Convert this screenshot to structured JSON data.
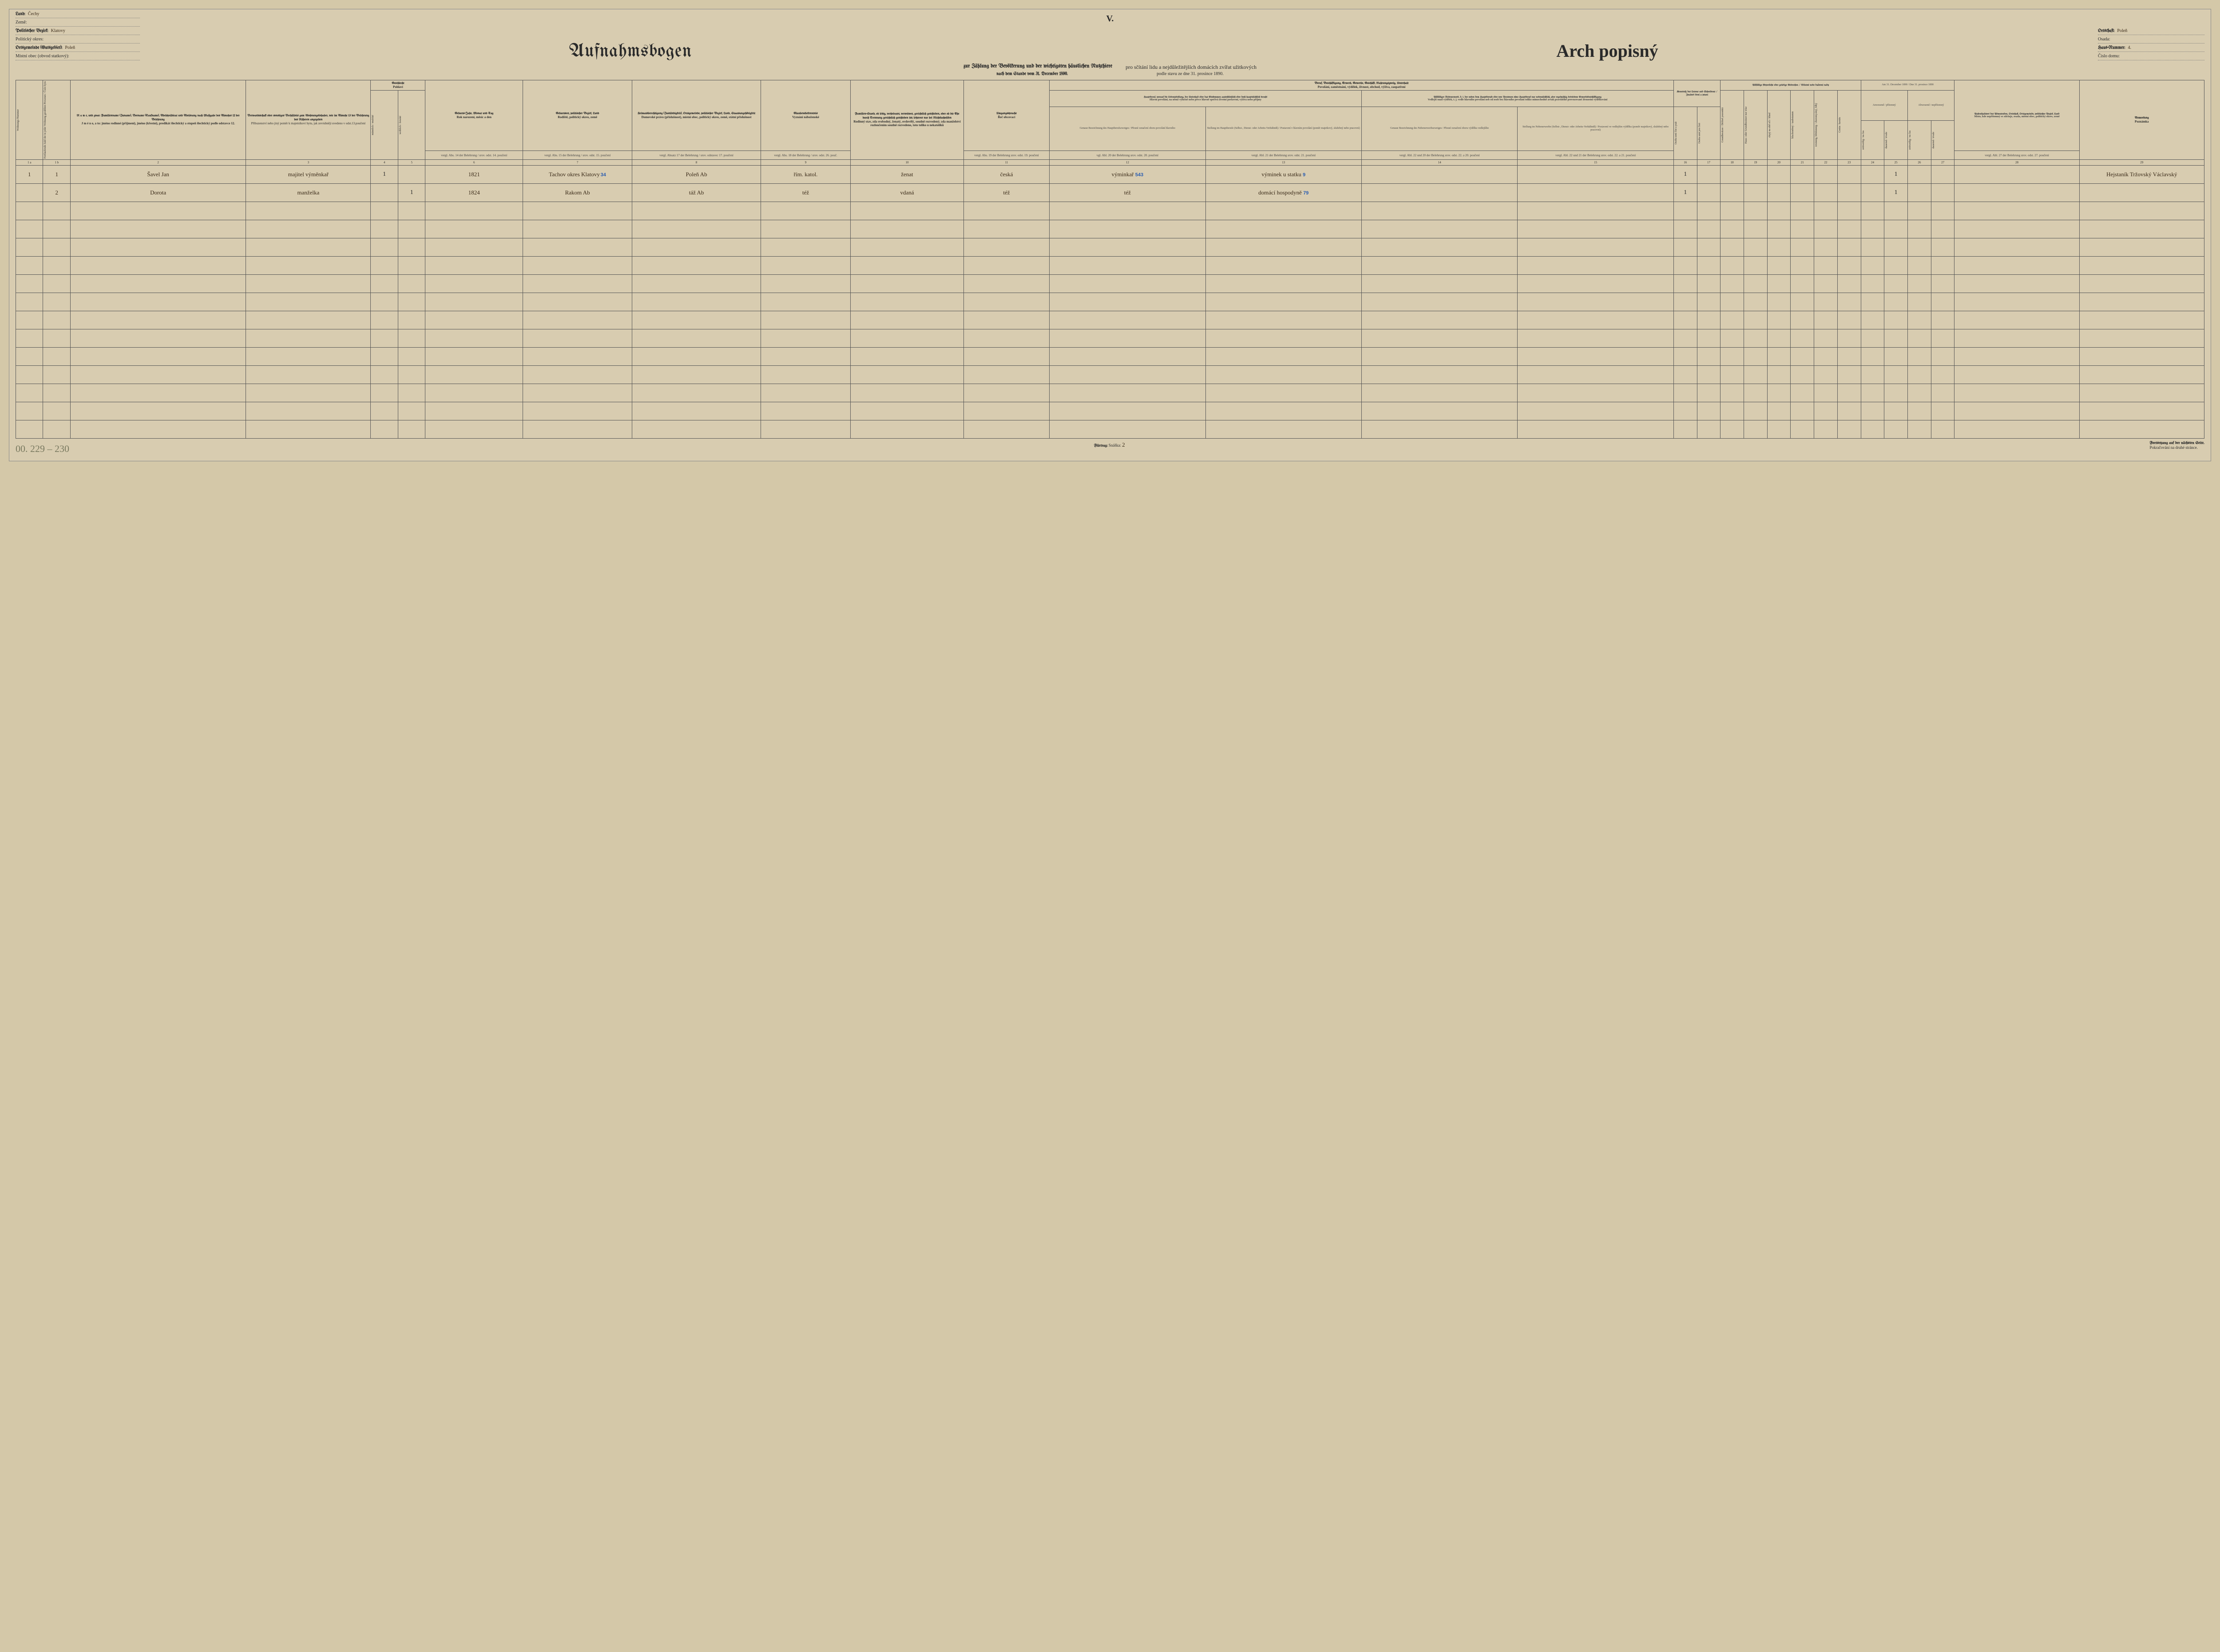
{
  "page_roman": "V.",
  "header_left": {
    "land_de": "Land:",
    "land_cz": "Země:",
    "land_val": "Čechy",
    "bezirk_de": "Politischer Bezirk:",
    "bezirk_cz": "Politický okres:",
    "bezirk_val": "Klatovy",
    "gemeinde_de": "Ortsgemeinde (Gutsgebiet):",
    "gemeinde_cz": "Místní obec (obvod statkový):",
    "gemeinde_val": "Poleň"
  },
  "header_right": {
    "ort_de": "Ortschaft:",
    "ort_cz": "Osada:",
    "ort_val": "Poleň",
    "haus_de": "Haus-Nummer:",
    "haus_cz": "Číslo domu:",
    "haus_val": "4."
  },
  "title_de": "Aufnahmsbogen",
  "title_cz": "Arch popisný",
  "subtitle_de": "zur Zählung der Bevölkerung und der wichtigsten häuslichen Nutzthiere",
  "subtitle_cz": "pro sčítání lidu a nejdůležitějších domácích zvířat užitkových",
  "date_de": "nach dem Stande vom 31. December 1890.",
  "date_cz": "podle stavu ze dne 31. prosince 1890.",
  "columns": {
    "c1a": "Wohnungs-Nummer",
    "c1b": "Fortlaufende Zahl der in jeder Wohnung gezählten Personen / Číslo bytu",
    "c2_de": "N a m e, und zwar: Familienname (Zuname), Vorname (Taufname), Adelsprädicat und Adelsrang nach Maßgabe des Absatzes 12 der Belehrung",
    "c2_cz": "J m é n o, a to: jméno rodinné (příjmení), jméno (křestní), predikát šlechtický a stupeň šlechtický podle odstavce 12.",
    "c3_de": "Verwandtschaft oder sonstiges Verhältnis zum Wohnungsinhaber, wie im Absatze 13 der Belehrung des Näheren angegeben",
    "c3_cz": "Příbuzenství nebo jiný poměr k majetníkovi bytu, jak zevrubněji uvedeno v odst.13.poučení",
    "c45_de": "Geschlecht",
    "c45_cz": "Pohlaví",
    "c4": "männlich / mužské",
    "c5": "weiblich / ženské",
    "c6_de": "Geburts-Jahr, Monat und Tag",
    "c6_cz": "Rok narození, měsíc a den",
    "c6_ref": "vergl. Abs. 14 der Belehrung / srov. odst. 14. poučení",
    "c7_de": "Geburtsort, politischer Bezirk, Land",
    "c7_cz": "Rodiště, politický okres, země",
    "c7_ref": "vergl. Abs. 15 der Belehrung / srov. odst. 15. poučení",
    "c8_de": "Heimatsberechtigung (Zuständigkeit), Ortsgemeinde, politischer Bezirk, Land, Staatsangehörigkeit",
    "c8_cz": "Domovské právo (příslušnost), místní obec, politický okres, země, státní příslušnost",
    "c8_ref": "vergl. Absatz 17 der Belehrung / srov. odstavec 17. poučení",
    "c9_de": "Glaubensbekenntnis",
    "c9_cz": "Vyznání náboženské",
    "c9_ref": "vergl. Abs. 18 der Belehrung / srov. odst. 26. pouč.",
    "c10_de": "Familien-Stand, ob ledig, verheiratet, verwitwet, gerichtlich geschieden, oder ob die Ehe durch Trennung gerichtlich geschieden ist; letzteres nur bei Nichtkatholiken",
    "c10_cz": "Rodinný stav, zda svobodný, ženatý, ovdovělý, soudně rozvedený; zda manželství rozloučením soudně rozvedeno, toto toliko u nekatolíků",
    "c11_de": "Umgangssprache",
    "c11_cz": "Řeč obcovací",
    "c11_ref": "vergl. Abs. 19 der Belehrung srov. odst. 19. poučení",
    "c12_15_de": "Beruf, Beschäftigung, Erwerb, Gewerbe, Geschäft, Nahrungszweig, Unterhalt",
    "c12_15_cz": "Povolání, zaměstnání, výdělek, živnost, obchod, výživa, zaopatření",
    "c12_de": "Hauptberuf, worauf die Lebensstellung, der Unterhalt oder das Einkommen ausschließlich oder doch hauptsächlich beruht",
    "c12_cz": "Hlavní povolání, na němž výlučně nebo přece hlavně spočívá životní postavení, výživa nebo příjmy",
    "c12_sub_de": "Genaue Bezeichnung des Hauptberufszweiges / Přesné označení oboru povolání hlavního",
    "c13_sub_de": "Stellung im Hauptberufe (Selbst-, Dienst- oder Arbeits-Verhältniß) / Postavení v hlavním povolání (poměr majetkový, služebný nebo pracovní)",
    "c14_de": "Allfälliger Nebenerwerb, d. i. der neben dem Hauptberufe oder von Personen ohne Hauptberuf nur nebensächlich, aber regelmäßig betriebene Erwerbsbeschäftigung",
    "c14_cz": "Vedlejší snad výdělek, t. j. vedle hlavního povolání neb od osob bez hlavního povolání toliko mimochodně avšak pravidelně provozované živnostní výdělkování",
    "c14_sub": "Genaue Bezeichnung des Nebenerwerbszweiges / Přesné označení oboru výdělku vedlejšího",
    "c15_sub": "Stellung im Nebenerwerbe (Selbst-, Dienst- oder Arbeits-Verhältniß) / Postavení ve vedlejším výdělku (poměr majetkový, služebný nebo pracovní)",
    "c12_ref": "vgl. Abl. 20 der Belehrung srov. odst. 20. poučení",
    "c13_ref": "vergl. Abl. 21 der Belehrung srov. odst. 21. poučení",
    "c14_ref": "vergl. Abl. 22 und 20 der Belehrung srov. odst. 22. a 20. poučení",
    "c15_ref": "vergl. Abl. 22 und 21 der Belehrung srov. odst. 22. a 21. poučení",
    "c1617_de": "Kenntniß des Lesens und Schreibens / Znalost čtení a psaní",
    "c16": "Osoba umí číst a psát",
    "c17": "Osoba umí jen čísti",
    "c1823_de": "Allfällige körperliche oder geistige Gebrechen / Tělesné nebo duševní vady",
    "c18": "Grundbesitzer / Držitel pozemků",
    "c19": "Haus- oder Grundbesitzer nur tríse",
    "c20": "slepý na obě oči / blind",
    "c21": "hluchoněmý / taubstumm",
    "c22": "irrsinnig, blödsinnig / choromyslný, blbý",
    "c23": "Cretin / kretén",
    "c2427_de": "Am 31. December 1890 / Dne 31. prosince 1890",
    "c2425": "Anwesend / přítomný",
    "c2627": "Abwesend / nepřítomný",
    "c24": "zeitweilig / na čas",
    "c25": "dauernd / trvale",
    "c26": "zeitweilig / na čas",
    "c27": "dauernd / trvale",
    "c28_de": "Aufenthaltsort des Abwesenden, Ortschaft, Ortsgemeinde, politischer Bezirk, Land",
    "c28_cz": "Místo, kde nepřítomný se zdržuje, osada, místní obec, politický okres, země",
    "c28_ref": "vergl. Abl. 27 der Belehrung srov. odst. 27. poučení",
    "c29_de": "Anmerkung",
    "c29_cz": "Poznámka",
    "n1a": "1 a",
    "n1b": "1 b",
    "n2": "2",
    "n3": "3",
    "n4": "4",
    "n5": "5",
    "n6": "6",
    "n7": "7",
    "n8": "8",
    "n9": "9",
    "n10": "10",
    "n11": "11",
    "n12": "12",
    "n13": "13",
    "n14": "14",
    "n15": "15",
    "n16": "16",
    "n17": "17",
    "n18": "18",
    "n19": "19",
    "n20": "20",
    "n21": "21",
    "n22": "22",
    "n23": "23",
    "n24": "24",
    "n25": "25",
    "n26": "26",
    "n27": "27",
    "n28": "28",
    "n29": "29"
  },
  "rows": [
    {
      "num_a": "1",
      "num_b": "1",
      "name": "Šavel Jan",
      "relation": "majitel výměnkař",
      "male": "1",
      "female": "",
      "birth": "1821",
      "birthplace": "Tachov 34 okres Klatovy",
      "heimat": "Poleň  Ab",
      "religion": "řím. katol.",
      "status": "ženat",
      "language": "česká",
      "occ_main": "výminkař 543",
      "occ_pos": "výminek u statku 9",
      "occ_side": "",
      "occ_side_pos": "",
      "read": "1",
      "readonly": "",
      "d18": "",
      "d19": "",
      "d20": "",
      "d21": "",
      "d22": "",
      "d23": "",
      "pres_temp": "",
      "pres_perm": "1",
      "abs_temp": "",
      "abs_perm": "",
      "place": "",
      "note": "Hejstaník Tržovský Václavský"
    },
    {
      "num_a": "",
      "num_b": "2",
      "name": "Dorota",
      "relation": "manželka",
      "male": "",
      "female": "1",
      "birth": "1824",
      "birthplace": "Rakom Ab",
      "heimat": "táž  Ab",
      "religion": "též",
      "status": "vdaná",
      "language": "též",
      "occ_main": "též",
      "occ_pos": "domácí hospodyně 79",
      "occ_side": "",
      "occ_side_pos": "",
      "read": "1",
      "readonly": "",
      "d18": "",
      "d19": "",
      "d20": "",
      "d21": "",
      "d22": "",
      "d23": "",
      "pres_temp": "",
      "pres_perm": "1",
      "abs_temp": "",
      "abs_perm": "",
      "place": "",
      "note": ""
    }
  ],
  "footer": {
    "left_pencil": "00. 229 – 230",
    "furtrag_de": "Fürtrag:",
    "furtrag_cz": "Snáška:",
    "furtrag_val": "2",
    "cont_de": "Fortsetzung auf der nächsten Seite.",
    "cont_cz": "Pokračování na druhé stránce."
  },
  "empty_rows": 13,
  "colors": {
    "paper": "#d8ccb0",
    "ink": "#2a2a2a",
    "hand_ink": "#3a2a18",
    "blue_stamp": "#2a5db0",
    "pencil": "#7a7a60",
    "border": "#555555"
  }
}
